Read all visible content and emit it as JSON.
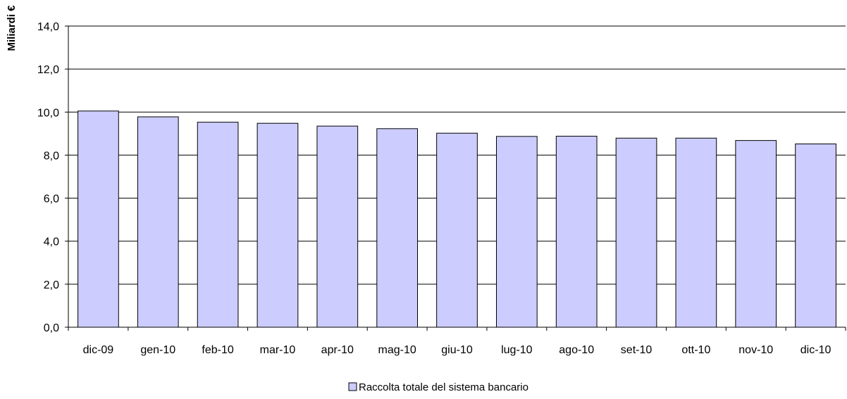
{
  "chart_data": {
    "type": "bar",
    "title": "",
    "xlabel": "",
    "ylabel": "Miliardi €",
    "ylim": [
      0,
      14
    ],
    "yticks": [
      "0,0",
      "2,0",
      "4,0",
      "6,0",
      "8,0",
      "10,0",
      "12,0",
      "14,0"
    ],
    "grid": true,
    "legend_position": "bottom",
    "categories": [
      "dic-09",
      "gen-10",
      "feb-10",
      "mar-10",
      "apr-10",
      "mag-10",
      "giu-10",
      "lug-10",
      "ago-10",
      "set-10",
      "ott-10",
      "nov-10",
      "dic-10"
    ],
    "series": [
      {
        "name": "Raccolta totale del sistema bancario",
        "color": "#ccccff",
        "values": [
          10.05,
          9.78,
          9.53,
          9.48,
          9.35,
          9.23,
          9.02,
          8.87,
          8.88,
          8.79,
          8.79,
          8.68,
          8.52
        ]
      }
    ]
  }
}
